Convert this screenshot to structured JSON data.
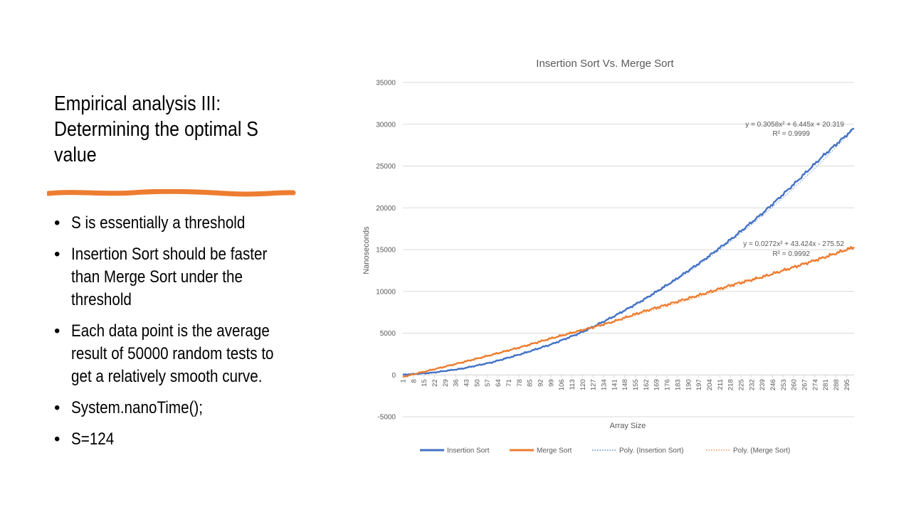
{
  "slide": {
    "title_lines": [
      "Empirical analysis III:",
      "Determining the optimal S",
      "value"
    ],
    "accent_color": "#ED7D31",
    "bullets": [
      "S is essentially a threshold",
      "Insertion Sort should be faster than Merge Sort under the threshold",
      "Each data point is the average result of 50000 random tests to get a relatively smooth curve.",
      "System.nanoTime();",
      "S=124"
    ]
  },
  "chart_data": {
    "type": "line",
    "title": "Insertion Sort Vs. Merge Sort",
    "xlabel": "Array Size",
    "ylabel": "Nanoseconds",
    "ylim": [
      -5000,
      35000
    ],
    "yticks": [
      35000,
      30000,
      25000,
      20000,
      15000,
      10000,
      5000,
      0,
      -5000
    ],
    "x_range": [
      1,
      300
    ],
    "xticks": [
      "1",
      "8",
      "15",
      "22",
      "29",
      "36",
      "43",
      "50",
      "57",
      "64",
      "71",
      "78",
      "85",
      "92",
      "99",
      "106",
      "113",
      "120",
      "127",
      "134",
      "141",
      "148",
      "155",
      "162",
      "169",
      "176",
      "183",
      "190",
      "197",
      "204",
      "211",
      "218",
      "225",
      "232",
      "239",
      "246",
      "253",
      "260",
      "267",
      "274",
      "281",
      "288",
      "295"
    ],
    "grid": true,
    "legend_position": "bottom",
    "series": [
      {
        "name": "Insertion Sort",
        "color": "#4472C4",
        "x": [
          1,
          20,
          40,
          60,
          80,
          100,
          120,
          140,
          160,
          180,
          200,
          220,
          240,
          260,
          280,
          300
        ],
        "values": [
          27,
          255,
          746,
          1508,
          2533,
          3704,
          5129,
          6930,
          8940,
          11210,
          13700,
          16450,
          19450,
          22800,
          26300,
          29500
        ]
      },
      {
        "name": "Merge Sort",
        "color": "#ED7D31",
        "x": [
          1,
          20,
          40,
          60,
          80,
          100,
          120,
          140,
          160,
          180,
          200,
          220,
          240,
          260,
          280,
          300
        ],
        "values": [
          -232,
          600,
          1490,
          2410,
          3370,
          4420,
          5370,
          6350,
          7570,
          8620,
          9690,
          10820,
          11760,
          12900,
          14060,
          15300
        ]
      },
      {
        "name": "Poly. (Insertion Sort)",
        "color": "#4472C4",
        "style": "dotted"
      },
      {
        "name": "Poly. (Merge Sort)",
        "color": "#ED7D31",
        "style": "dotted"
      }
    ],
    "trendlines": [
      {
        "series": "Insertion Sort",
        "equation": "y = 0.3058x² + 6.445x + 20.319",
        "r2": "R² = 0.9999",
        "coeffs": [
          0.3058,
          6.445,
          20.319
        ]
      },
      {
        "series": "Merge Sort",
        "equation": "y = 0.0272x² + 43.424x - 275.52",
        "r2": "R² = 0.9992",
        "coeffs": [
          0.0272,
          43.424,
          -275.52
        ]
      }
    ]
  }
}
